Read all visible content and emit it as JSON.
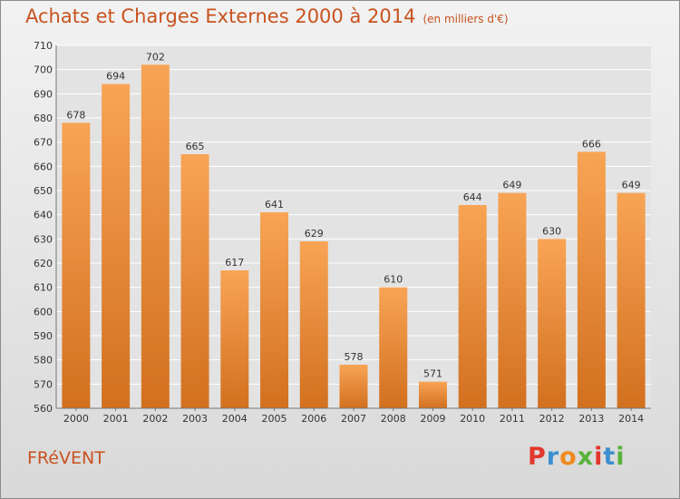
{
  "title": "Achats et Charges Externes 2000 à 2014",
  "unit": "(en milliers d'€)",
  "commune": "FRéVENT",
  "logo": {
    "text": "Proxiti",
    "colors": [
      "#e2372d",
      "#3b8fd0",
      "#f08a1d",
      "#58b33c",
      "#e2372d",
      "#3b8fd0",
      "#58b33c"
    ]
  },
  "colors": {
    "title": "#c8521e",
    "bar_light": "#f8a455",
    "bar_dark": "#d2701f",
    "grid": "#ffffff"
  },
  "chart_data": {
    "type": "bar",
    "categories": [
      "2000",
      "2001",
      "2002",
      "2003",
      "2004",
      "2005",
      "2006",
      "2007",
      "2008",
      "2009",
      "2010",
      "2011",
      "2012",
      "2013",
      "2014"
    ],
    "values": [
      678,
      694,
      702,
      665,
      617,
      641,
      629,
      578,
      610,
      571,
      644,
      649,
      630,
      666,
      649
    ],
    "ylim": [
      560,
      710
    ],
    "yticks": [
      560,
      570,
      580,
      590,
      600,
      610,
      620,
      630,
      640,
      650,
      660,
      670,
      680,
      690,
      700,
      710
    ],
    "grid": true
  }
}
